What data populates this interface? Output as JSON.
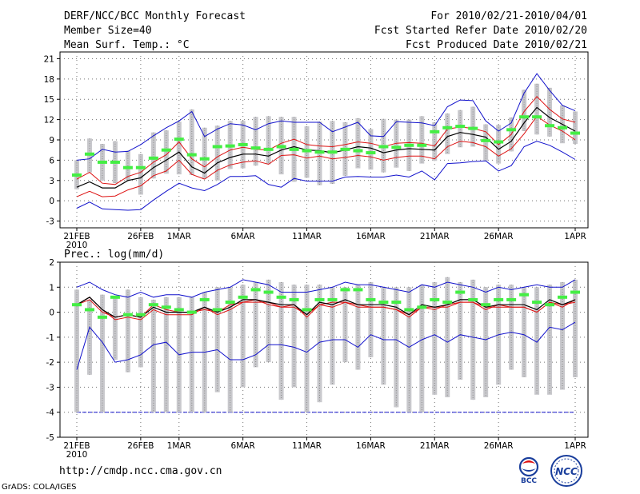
{
  "header": {
    "title": "DERF/NCC/BCC Monthly Forecast",
    "member": "Member Size=40",
    "variable": "Mean Surf. Temp.: °C",
    "period": "For 2010/02/21-2010/04/01",
    "started": "Fcst Started Refer Date 2010/02/20",
    "produced": "Fcst Produced Date 2010/02/21"
  },
  "footer": {
    "url": "http://cmdp.ncc.cma.gov.cn",
    "credit": "GrADS: COLA/IGES",
    "logo_left": "BCC",
    "logo_right": "NCC"
  },
  "colors": {
    "box": "#c8c8cc",
    "green": "#44ee44",
    "red": "#dd1111",
    "blue": "#1111cc",
    "mean": "#000000",
    "grid": "#777777"
  },
  "chart_data": [
    {
      "type": "box",
      "title": "Mean Surf. Temp.: °C",
      "xlabel": "",
      "ylabel": "",
      "ylim": [
        -4,
        22
      ],
      "yticks": [
        "-3",
        "0",
        "3",
        "6",
        "9",
        "12",
        "15",
        "18",
        "21"
      ],
      "xticks": [
        {
          "day": 0,
          "label": "21FEB",
          "sublabel": "2010"
        },
        {
          "day": 5,
          "label": "26FEB",
          "sublabel": ""
        },
        {
          "day": 8,
          "label": "1MAR",
          "sublabel": ""
        },
        {
          "day": 13,
          "label": "6MAR",
          "sublabel": ""
        },
        {
          "day": 18,
          "label": "11MAR",
          "sublabel": ""
        },
        {
          "day": 23,
          "label": "16MAR",
          "sublabel": ""
        },
        {
          "day": 28,
          "label": "21MAR",
          "sublabel": ""
        },
        {
          "day": 33,
          "label": "26MAR",
          "sublabel": ""
        },
        {
          "day": 39,
          "label": "1APR",
          "sublabel": ""
        }
      ],
      "days": 40,
      "box_low": [
        1.7,
        4.2,
        3.0,
        2.6,
        3.0,
        0.9,
        3.3,
        4.0,
        3.9,
        3.8,
        3.3,
        3.0,
        4.7,
        4.8,
        5.2,
        5.4,
        3.9,
        2.8,
        3.4,
        2.3,
        2.5,
        3.7,
        4.8,
        4.6,
        4.2,
        4.9,
        4.4,
        5.5,
        5.9,
        6.9,
        7.9,
        8.0,
        5.9,
        5.5,
        7.3,
        10.3,
        9.8,
        9.5,
        8.5,
        8.4
      ],
      "box_high": [
        6.0,
        9.2,
        8.4,
        8.8,
        7.4,
        6.9,
        10.1,
        10.4,
        11.7,
        13.5,
        10.8,
        11.1,
        11.8,
        11.8,
        12.4,
        12.5,
        12.4,
        12.4,
        11.0,
        11.7,
        11.8,
        11.6,
        12.2,
        10.6,
        12.1,
        12.0,
        12.0,
        12.5,
        11.6,
        12.9,
        13.4,
        13.9,
        11.3,
        11.2,
        12.3,
        16.4,
        17.3,
        16.7,
        14.1,
        13.2
      ],
      "ctrl": [
        3.8,
        6.9,
        5.7,
        5.7,
        4.9,
        4.9,
        6.3,
        7.5,
        9.1,
        6.8,
        6.2,
        8.0,
        8.1,
        8.3,
        7.8,
        7.6,
        8.0,
        7.6,
        7.4,
        7.2,
        7.2,
        7.6,
        7.4,
        7.1,
        8.0,
        7.9,
        8.2,
        8.2,
        10.2,
        10.8,
        11.0,
        10.7,
        8.9,
        8.7,
        10.5,
        12.4,
        12.4,
        11.1,
        10.8,
        10.0
      ],
      "mean": [
        2.0,
        2.8,
        1.9,
        1.9,
        3.0,
        3.4,
        4.9,
        6.0,
        7.2,
        5.0,
        4.1,
        5.6,
        6.4,
        6.9,
        6.9,
        6.6,
        7.5,
        8.0,
        7.5,
        7.4,
        7.1,
        7.5,
        8.0,
        7.8,
        7.1,
        7.5,
        7.7,
        7.6,
        7.5,
        9.5,
        10.1,
        9.8,
        9.4,
        7.6,
        8.8,
        11.5,
        13.8,
        12.3,
        11.3,
        10.3
      ],
      "p_high": [
        3.2,
        4.2,
        2.6,
        2.4,
        3.6,
        4.2,
        5.7,
        6.8,
        8.7,
        6.2,
        5.0,
        6.5,
        7.5,
        7.9,
        7.6,
        7.5,
        8.5,
        9.1,
        8.3,
        8.1,
        8.0,
        8.3,
        8.7,
        8.5,
        8.0,
        8.5,
        8.6,
        8.5,
        8.1,
        10.6,
        10.9,
        10.7,
        10.2,
        8.3,
        9.8,
        13.2,
        15.4,
        13.5,
        12.1,
        11.6
      ],
      "p_low": [
        0.6,
        1.4,
        0.6,
        0.7,
        1.6,
        2.2,
        3.7,
        4.4,
        6.0,
        3.9,
        3.2,
        4.5,
        5.3,
        5.7,
        5.9,
        5.4,
        6.7,
        6.8,
        6.3,
        6.6,
        6.2,
        6.4,
        6.7,
        6.5,
        6.0,
        6.4,
        6.6,
        6.6,
        6.2,
        8.0,
        8.8,
        8.6,
        8.0,
        6.6,
        7.7,
        9.9,
        12.5,
        11.2,
        10.3,
        9.0
      ],
      "max": [
        6.0,
        6.2,
        7.6,
        7.2,
        7.3,
        8.3,
        9.6,
        10.8,
        11.8,
        13.2,
        9.5,
        10.6,
        11.4,
        11.2,
        10.5,
        11.4,
        11.8,
        11.6,
        11.6,
        11.6,
        10.2,
        10.9,
        11.6,
        9.6,
        9.5,
        11.7,
        11.6,
        11.5,
        11.1,
        13.9,
        14.9,
        14.8,
        11.8,
        10.3,
        11.5,
        15.9,
        18.8,
        16.3,
        14.1,
        13.3
      ],
      "min": [
        -1.1,
        -0.2,
        -1.2,
        -1.3,
        -1.4,
        -1.3,
        0.1,
        1.4,
        2.6,
        1.9,
        1.5,
        2.4,
        3.6,
        3.6,
        3.7,
        2.4,
        2.0,
        3.3,
        2.9,
        2.9,
        2.9,
        3.5,
        3.6,
        3.5,
        3.5,
        3.8,
        3.5,
        4.4,
        3.1,
        5.5,
        5.6,
        5.8,
        5.9,
        4.4,
        5.2,
        8.0,
        8.8,
        8.2,
        7.2,
        6.1
      ]
    },
    {
      "type": "box",
      "title": "Prec.: log(mm/d)",
      "xlabel": "",
      "ylabel": "",
      "ylim": [
        -5,
        2
      ],
      "yticks": [
        "-5",
        "-4",
        "-3",
        "-2",
        "-1",
        "0",
        "1",
        "2"
      ],
      "xticks": [
        {
          "day": 0,
          "label": "21FEB",
          "sublabel": "2010"
        },
        {
          "day": 5,
          "label": "26FEB",
          "sublabel": ""
        },
        {
          "day": 8,
          "label": "1MAR",
          "sublabel": ""
        },
        {
          "day": 13,
          "label": "6MAR",
          "sublabel": ""
        },
        {
          "day": 18,
          "label": "11MAR",
          "sublabel": ""
        },
        {
          "day": 23,
          "label": "16MAR",
          "sublabel": ""
        },
        {
          "day": 28,
          "label": "21MAR",
          "sublabel": ""
        },
        {
          "day": 33,
          "label": "26MAR",
          "sublabel": ""
        },
        {
          "day": 39,
          "label": "1APR",
          "sublabel": ""
        }
      ],
      "days": 40,
      "reference_line": -4,
      "box_low": [
        -4.0,
        -2.5,
        -4.0,
        -1.9,
        -2.4,
        -2.2,
        -4.0,
        -4.0,
        -4.0,
        -4.0,
        -4.0,
        -3.2,
        -4.0,
        -3.0,
        -2.2,
        -2.0,
        -3.5,
        -3.0,
        -4.0,
        -3.6,
        -2.9,
        -2.0,
        -2.3,
        -1.8,
        -2.9,
        -3.8,
        -4.0,
        -4.0,
        -3.3,
        -3.4,
        -2.7,
        -3.5,
        -3.4,
        -2.9,
        -2.3,
        -2.6,
        -3.3,
        -3.3,
        -3.1,
        -2.6
      ],
      "box_high": [
        0.9,
        0.5,
        0.7,
        0.6,
        0.9,
        0.6,
        0.5,
        0.6,
        0.6,
        0.6,
        0.8,
        1.0,
        1.0,
        1.1,
        1.2,
        1.3,
        1.2,
        1.1,
        1.1,
        1.1,
        1.0,
        1.0,
        1.1,
        1.2,
        1.0,
        1.0,
        1.0,
        1.1,
        1.2,
        1.4,
        1.2,
        1.3,
        1.0,
        1.1,
        1.1,
        1.0,
        1.0,
        1.1,
        1.2,
        1.3
      ],
      "ctrl": [
        0.3,
        0.1,
        -0.2,
        0.6,
        -0.1,
        -0.1,
        0.3,
        0.2,
        0.1,
        -0.0,
        0.5,
        0.1,
        0.4,
        0.6,
        0.9,
        0.8,
        0.6,
        0.5,
        0.1,
        0.5,
        0.5,
        0.9,
        0.9,
        0.5,
        0.4,
        0.4,
        0.1,
        0.2,
        0.5,
        0.4,
        0.8,
        0.5,
        0.3,
        0.5,
        0.5,
        0.7,
        0.4,
        0.3,
        0.6,
        0.8
      ],
      "mean": [
        0.3,
        0.6,
        0.1,
        -0.2,
        -0.1,
        -0.2,
        0.2,
        0.0,
        0.0,
        0.0,
        0.2,
        0.0,
        0.2,
        0.5,
        0.5,
        0.4,
        0.3,
        0.3,
        -0.1,
        0.4,
        0.3,
        0.5,
        0.3,
        0.3,
        0.3,
        0.2,
        -0.1,
        0.3,
        0.2,
        0.3,
        0.5,
        0.5,
        0.2,
        0.3,
        0.3,
        0.3,
        0.1,
        0.5,
        0.3,
        0.5
      ],
      "p_high": [
        0.3,
        0.5,
        0.0,
        -0.2,
        -0.1,
        -0.2,
        0.3,
        0.1,
        0.0,
        0.0,
        0.1,
        0.0,
        0.3,
        0.4,
        0.4,
        0.4,
        0.2,
        0.2,
        -0.1,
        0.3,
        0.4,
        0.4,
        0.3,
        0.2,
        0.2,
        0.1,
        -0.1,
        0.2,
        0.1,
        0.3,
        0.4,
        0.4,
        0.2,
        0.2,
        0.2,
        0.2,
        0.0,
        0.4,
        0.3,
        0.4
      ],
      "p_low": [
        0.3,
        0.6,
        0.1,
        -0.3,
        -0.2,
        -0.3,
        0.1,
        -0.1,
        -0.1,
        -0.1,
        0.2,
        -0.1,
        0.1,
        0.4,
        0.5,
        0.3,
        0.2,
        0.3,
        -0.2,
        0.3,
        0.2,
        0.4,
        0.2,
        0.2,
        0.2,
        0.1,
        -0.2,
        0.2,
        0.2,
        0.2,
        0.4,
        0.4,
        0.1,
        0.3,
        0.2,
        0.2,
        0.0,
        0.4,
        0.2,
        0.5
      ],
      "max": [
        1.0,
        1.2,
        0.9,
        0.7,
        0.6,
        0.8,
        0.6,
        0.7,
        0.7,
        0.6,
        0.8,
        0.9,
        1.0,
        1.3,
        1.2,
        1.1,
        0.8,
        0.8,
        0.8,
        0.9,
        1.0,
        1.2,
        1.1,
        1.1,
        1.0,
        0.9,
        0.8,
        1.1,
        1.0,
        1.2,
        1.1,
        1.0,
        0.8,
        1.0,
        0.9,
        1.0,
        1.1,
        1.0,
        1.0,
        1.3
      ],
      "min": [
        -2.3,
        -0.6,
        -1.2,
        -2.0,
        -1.9,
        -1.7,
        -1.3,
        -1.2,
        -1.7,
        -1.6,
        -1.6,
        -1.5,
        -1.9,
        -1.9,
        -1.7,
        -1.3,
        -1.3,
        -1.4,
        -1.6,
        -1.2,
        -1.1,
        -1.1,
        -1.4,
        -0.9,
        -1.1,
        -1.1,
        -1.4,
        -1.1,
        -0.9,
        -1.2,
        -0.9,
        -1.0,
        -1.1,
        -0.9,
        -0.8,
        -0.9,
        -1.2,
        -0.6,
        -0.7,
        -0.4
      ]
    }
  ]
}
